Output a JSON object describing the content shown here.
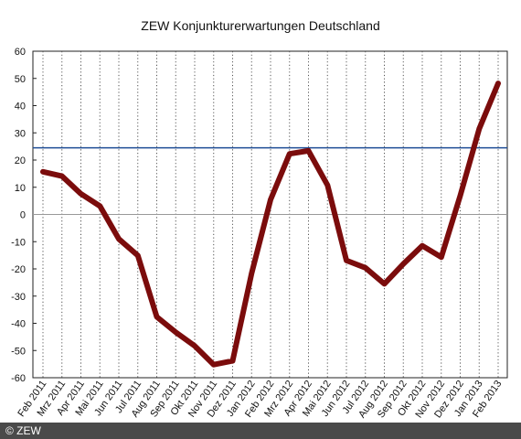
{
  "chart_data": {
    "type": "line",
    "title": "ZEW Konjunkturerwartungen Deutschland",
    "xlabel": "",
    "ylabel": "",
    "ylim": [
      -60,
      60
    ],
    "yticks": [
      60,
      50,
      40,
      30,
      20,
      10,
      0,
      -10,
      -20,
      -30,
      -40,
      -50,
      -60
    ],
    "grid": "vertical dotted lines per month",
    "legend": "none",
    "categories": [
      "Feb 2011",
      "Mrz 2011",
      "Apr 2011",
      "Mai 2011",
      "Jun 2011",
      "Jul 2011",
      "Aug 2011",
      "Sep 2011",
      "Okt 2011",
      "Nov 2011",
      "Dez 2011",
      "Jan 2012",
      "Feb 2012",
      "Mrz 2012",
      "Apr 2012",
      "Mai 2012",
      "Jun 2012",
      "Jul 2012",
      "Aug 2012",
      "Sep 2012",
      "Okt 2012",
      "Nov 2012",
      "Dez 2012",
      "Jan 2013",
      "Feb 2013"
    ],
    "series": [
      {
        "values": [
          15.7,
          14.1,
          7.6,
          3.1,
          -9.0,
          -15.1,
          -37.6,
          -43.3,
          -48.3,
          -55.2,
          -53.8,
          -21.6,
          5.4,
          22.3,
          23.4,
          10.8,
          -16.9,
          -19.6,
          -25.5,
          -18.2,
          -11.5,
          -15.7,
          6.9,
          31.5,
          48.2
        ],
        "color": "#7b0c0c"
      }
    ],
    "reference_lines": [
      {
        "value": 24.5,
        "color": "#1f4e96"
      },
      {
        "value": 0,
        "color": "#999999"
      }
    ]
  },
  "footer": {
    "copyright": "© ZEW"
  }
}
